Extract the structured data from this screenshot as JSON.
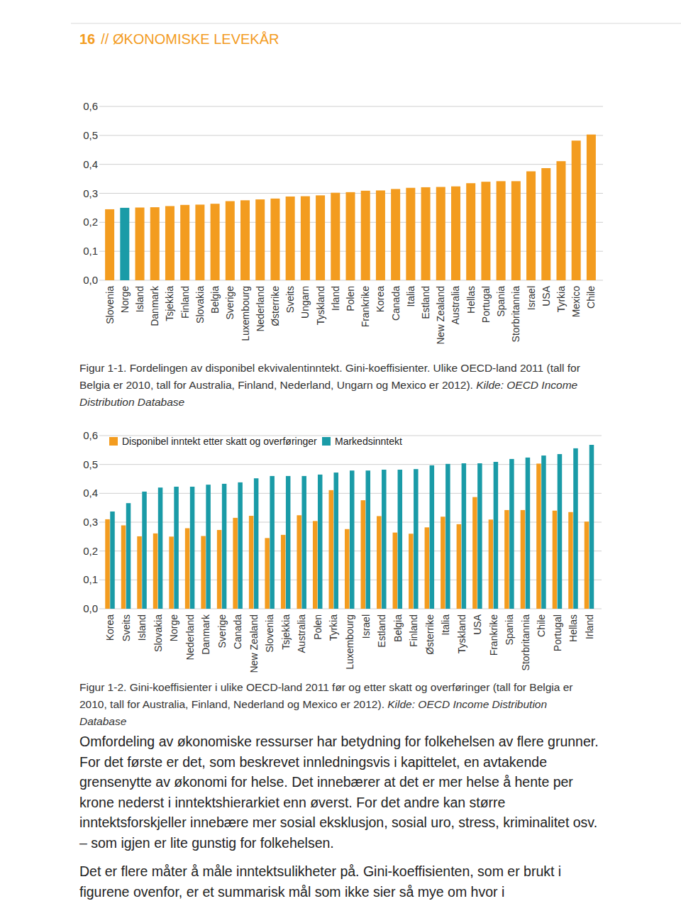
{
  "header": {
    "page": "16",
    "section": "// ØKONOMISKE LEVEKÅR"
  },
  "chart_data": [
    {
      "type": "bar",
      "grid": true,
      "categories": [
        "Slovenia",
        "Norge",
        "Island",
        "Danmark",
        "Tsjekkia",
        "Finland",
        "Slovakia",
        "Belgia",
        "Sverige",
        "Luxembourg",
        "Nederland",
        "Østerrike",
        "Sveits",
        "Ungarn",
        "Tyskland",
        "Irland",
        "Polen",
        "Frankrike",
        "Korea",
        "Canada",
        "Italia",
        "Estland",
        "New Zealand",
        "Australia",
        "Hellas",
        "Portugal",
        "Spania",
        "Storbritannia",
        "Israel",
        "USA",
        "Tyrkia",
        "Mexico",
        "Chile"
      ],
      "values": [
        0.245,
        0.25,
        0.251,
        0.252,
        0.256,
        0.26,
        0.261,
        0.264,
        0.273,
        0.276,
        0.279,
        0.282,
        0.289,
        0.29,
        0.293,
        0.302,
        0.304,
        0.309,
        0.31,
        0.315,
        0.319,
        0.321,
        0.322,
        0.324,
        0.335,
        0.34,
        0.342,
        0.342,
        0.376,
        0.387,
        0.411,
        0.482,
        0.503
      ],
      "colors": [
        "#f39c1f",
        "#1a9ba7",
        "#f39c1f",
        "#f39c1f",
        "#f39c1f",
        "#f39c1f",
        "#f39c1f",
        "#f39c1f",
        "#f39c1f",
        "#f39c1f",
        "#f39c1f",
        "#f39c1f",
        "#f39c1f",
        "#f39c1f",
        "#f39c1f",
        "#f39c1f",
        "#f39c1f",
        "#f39c1f",
        "#f39c1f",
        "#f39c1f",
        "#f39c1f",
        "#f39c1f",
        "#f39c1f",
        "#f39c1f",
        "#f39c1f",
        "#f39c1f",
        "#f39c1f",
        "#f39c1f",
        "#f39c1f",
        "#f39c1f",
        "#f39c1f",
        "#f39c1f",
        "#f39c1f"
      ],
      "ylim": [
        0,
        0.6
      ],
      "yticks": [
        {
          "value": 0,
          "label": "0,0"
        },
        {
          "value": 0.1,
          "label": "0,1"
        },
        {
          "value": 0.2,
          "label": "0,2"
        },
        {
          "value": 0.3,
          "label": "0,3"
        },
        {
          "value": 0.4,
          "label": "0,4"
        },
        {
          "value": 0.5,
          "label": "0,5"
        },
        {
          "value": 0.6,
          "label": "0,6"
        }
      ]
    },
    {
      "type": "bar",
      "grid": true,
      "legend": "top-left",
      "categories": [
        "Korea",
        "Sveits",
        "Island",
        "Slovakia",
        "Norge",
        "Nederland",
        "Danmark",
        "Sverige",
        "Canada",
        "New Zealand",
        "Slovenia",
        "Tsjekkia",
        "Australia",
        "Polen",
        "Tyrkia",
        "Luxembourg",
        "Israel",
        "Estland",
        "Belgia",
        "Finland",
        "Østerrike",
        "Italia",
        "Tyskland",
        "USA",
        "Frankrike",
        "Spania",
        "Storbritannia",
        "Chile",
        "Portugal",
        "Hellas",
        "Irland"
      ],
      "series": [
        {
          "name": "Disponibel inntekt etter skatt og overføringer",
          "color": "#f39c1f",
          "values": [
            0.31,
            0.289,
            0.251,
            0.261,
            0.25,
            0.279,
            0.252,
            0.273,
            0.315,
            0.322,
            0.245,
            0.256,
            0.324,
            0.304,
            0.411,
            0.276,
            0.376,
            0.321,
            0.264,
            0.26,
            0.282,
            0.319,
            0.293,
            0.387,
            0.309,
            0.342,
            0.342,
            0.503,
            0.34,
            0.335,
            0.302
          ]
        },
        {
          "name": "Markedsinntekt",
          "color": "#1a9ba7",
          "values": [
            0.337,
            0.366,
            0.406,
            0.42,
            0.423,
            0.423,
            0.43,
            0.433,
            0.438,
            0.452,
            0.46,
            0.46,
            0.46,
            0.465,
            0.472,
            0.479,
            0.479,
            0.482,
            0.482,
            0.484,
            0.497,
            0.502,
            0.504,
            0.504,
            0.509,
            0.519,
            0.524,
            0.531,
            0.536,
            0.556,
            0.568
          ]
        }
      ],
      "ylim": [
        0,
        0.6
      ],
      "yticks": [
        {
          "value": 0,
          "label": "0,0"
        },
        {
          "value": 0.1,
          "label": "0,1"
        },
        {
          "value": 0.2,
          "label": "0,2"
        },
        {
          "value": 0.3,
          "label": "0,3"
        },
        {
          "value": 0.4,
          "label": "0,4"
        },
        {
          "value": 0.5,
          "label": "0,5"
        },
        {
          "value": 0.6,
          "label": "0,6"
        }
      ]
    }
  ],
  "figures": [
    {
      "text": "Figur 1-1. Fordelingen av disponibel ekvivalentinntekt. Gini-koeffisienter. Ulike OECD-land 2011 (tall for Belgia er 2010, tall for Australia, Finland, Nederland, Ungarn og Mexico er 2012).",
      "source": "Kilde: OECD Income Distribution Database"
    },
    {
      "text": "Figur 1-2. Gini-koeffisienter i ulike OECD-land 2011 før og etter skatt og overføringer (tall for Belgia er 2010, tall for Australia, Finland, Nederland og Mexico er 2012).",
      "source": "Kilde: OECD Income Distribution Database"
    }
  ],
  "body": [
    "Omfordeling av økonomiske ressurser har betydning for folkehelsen av flere grunner. For det første er det, som beskrevet innledningsvis i kapittelet, en avtakende grensenytte av økonomi for helse. Det innebærer at det er mer helse å hente per krone nederst i inntektshierarkiet enn øverst. For det andre kan større inntektsforskjeller innebære mer sosial eksklusjon, sosial uro, stress, kriminalitet osv. – som igjen er lite gunstig for folkehelsen.",
    "Det er flere måter å måle inntektsulikheter på. Gini-koeffisienten, som er brukt i figurene ovenfor, er et summarisk mål som ikke sier så mye om hvor i"
  ]
}
